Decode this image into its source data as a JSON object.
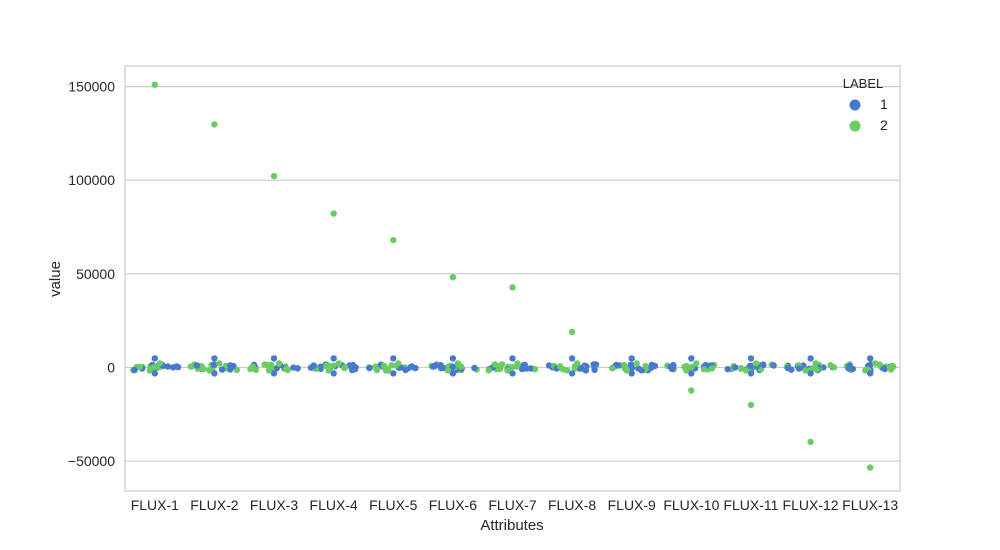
{
  "chart_data": {
    "type": "scatter",
    "subtype": "swarm",
    "title": "",
    "xlabel": "Attributes",
    "ylabel": "value",
    "categories": [
      "FLUX-1",
      "FLUX-2",
      "FLUX-3",
      "FLUX-4",
      "FLUX-5",
      "FLUX-6",
      "FLUX-7",
      "FLUX-8",
      "FLUX-9",
      "FLUX-10",
      "FLUX-11",
      "FLUX-12",
      "FLUX-13"
    ],
    "ylim": [
      -66000,
      161000
    ],
    "yticks": [
      -50000,
      0,
      50000,
      100000,
      150000
    ],
    "ytick_labels": [
      "−50000",
      "0",
      "50000",
      "100000",
      "150000"
    ],
    "grid": true,
    "legend": {
      "title": "LABEL",
      "placement": "top-right",
      "entries": [
        {
          "name": "1",
          "color": "#4878d0"
        },
        {
          "name": "2",
          "color": "#6acc64"
        }
      ]
    },
    "series": [
      {
        "name": "1",
        "color": "#4878d0",
        "outlier_values": [
          null,
          null,
          null,
          null,
          null,
          null,
          null,
          null,
          null,
          null,
          null,
          null,
          null
        ]
      },
      {
        "name": "2",
        "color": "#6acc64",
        "outlier_values": [
          151000,
          129800,
          102200,
          82200,
          68000,
          48200,
          42800,
          19000,
          null,
          -12300,
          -20000,
          -39800,
          -53500
        ]
      }
    ]
  }
}
